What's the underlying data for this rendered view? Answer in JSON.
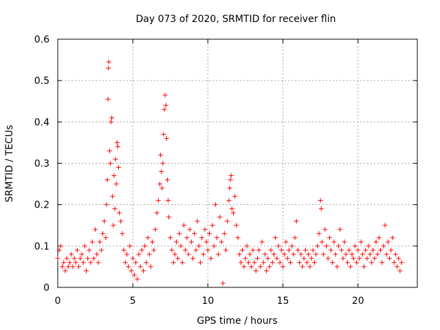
{
  "chart_data": {
    "type": "scatter",
    "title": "Day 073 of 2020, SRMTID for receiver flin",
    "xlabel": "GPS time / hours",
    "ylabel": "SRMTID / TECUs",
    "xlim": [
      0,
      23.95
    ],
    "ylim": [
      0,
      0.6
    ],
    "x_ticks": [
      0,
      5,
      10,
      15,
      20
    ],
    "y_ticks": [
      0,
      0.1,
      0.2,
      0.3,
      0.4,
      0.5,
      0.6
    ],
    "x_tick_labels": [
      "0",
      "5",
      "10",
      "15",
      "20"
    ],
    "y_tick_labels": [
      "0",
      "0.1",
      "0.2",
      "0.3",
      "0.4",
      "0.5",
      "0.6"
    ],
    "grid": true,
    "marker": "+",
    "color": "#ff0000",
    "series": [
      {
        "name": "SRMTID",
        "points": [
          [
            0.0,
            0.07
          ],
          [
            0.1,
            0.09
          ],
          [
            0.2,
            0.1
          ],
          [
            0.3,
            0.05
          ],
          [
            0.4,
            0.06
          ],
          [
            0.5,
            0.04
          ],
          [
            0.6,
            0.07
          ],
          [
            0.7,
            0.05
          ],
          [
            0.8,
            0.06
          ],
          [
            0.9,
            0.08
          ],
          [
            1.0,
            0.05
          ],
          [
            1.1,
            0.07
          ],
          [
            1.2,
            0.06
          ],
          [
            1.3,
            0.09
          ],
          [
            1.4,
            0.05
          ],
          [
            1.5,
            0.07
          ],
          [
            1.6,
            0.08
          ],
          [
            1.7,
            0.06
          ],
          [
            1.8,
            0.1
          ],
          [
            1.9,
            0.04
          ],
          [
            2.0,
            0.07
          ],
          [
            2.1,
            0.09
          ],
          [
            2.2,
            0.06
          ],
          [
            2.3,
            0.11
          ],
          [
            2.4,
            0.07
          ],
          [
            2.5,
            0.14
          ],
          [
            2.6,
            0.08
          ],
          [
            2.7,
            0.06
          ],
          [
            2.8,
            0.11
          ],
          [
            2.9,
            0.09
          ],
          [
            3.0,
            0.13
          ],
          [
            3.1,
            0.16
          ],
          [
            3.2,
            0.12
          ],
          [
            3.25,
            0.2
          ],
          [
            3.3,
            0.26
          ],
          [
            3.35,
            0.455
          ],
          [
            3.37,
            0.53
          ],
          [
            3.4,
            0.545
          ],
          [
            3.45,
            0.33
          ],
          [
            3.5,
            0.3
          ],
          [
            3.55,
            0.4
          ],
          [
            3.6,
            0.41
          ],
          [
            3.65,
            0.22
          ],
          [
            3.7,
            0.15
          ],
          [
            3.75,
            0.27
          ],
          [
            3.8,
            0.19
          ],
          [
            3.85,
            0.31
          ],
          [
            3.9,
            0.25
          ],
          [
            3.95,
            0.35
          ],
          [
            4.0,
            0.34
          ],
          [
            4.05,
            0.29
          ],
          [
            4.1,
            0.18
          ],
          [
            4.2,
            0.16
          ],
          [
            4.3,
            0.13
          ],
          [
            4.4,
            0.09
          ],
          [
            4.5,
            0.06
          ],
          [
            4.6,
            0.08
          ],
          [
            4.7,
            0.05
          ],
          [
            4.8,
            0.1
          ],
          [
            4.9,
            0.04
          ],
          [
            5.0,
            0.07
          ],
          [
            5.1,
            0.03
          ],
          [
            5.2,
            0.06
          ],
          [
            5.3,
            0.02
          ],
          [
            5.4,
            0.08
          ],
          [
            5.5,
            0.05
          ],
          [
            5.6,
            0.09
          ],
          [
            5.7,
            0.04
          ],
          [
            5.8,
            0.1
          ],
          [
            5.9,
            0.06
          ],
          [
            6.0,
            0.12
          ],
          [
            6.1,
            0.08
          ],
          [
            6.2,
            0.05
          ],
          [
            6.3,
            0.11
          ],
          [
            6.4,
            0.09
          ],
          [
            6.5,
            0.14
          ],
          [
            6.6,
            0.18
          ],
          [
            6.7,
            0.21
          ],
          [
            6.8,
            0.25
          ],
          [
            6.85,
            0.32
          ],
          [
            6.9,
            0.28
          ],
          [
            6.95,
            0.24
          ],
          [
            7.0,
            0.3
          ],
          [
            7.05,
            0.37
          ],
          [
            7.1,
            0.43
          ],
          [
            7.15,
            0.465
          ],
          [
            7.2,
            0.44
          ],
          [
            7.25,
            0.36
          ],
          [
            7.3,
            0.26
          ],
          [
            7.35,
            0.21
          ],
          [
            7.4,
            0.17
          ],
          [
            7.5,
            0.12
          ],
          [
            7.6,
            0.09
          ],
          [
            7.7,
            0.06
          ],
          [
            7.8,
            0.08
          ],
          [
            7.9,
            0.11
          ],
          [
            8.0,
            0.07
          ],
          [
            8.1,
            0.13
          ],
          [
            8.2,
            0.1
          ],
          [
            8.3,
            0.06
          ],
          [
            8.4,
            0.15
          ],
          [
            8.5,
            0.09
          ],
          [
            8.6,
            0.12
          ],
          [
            8.7,
            0.08
          ],
          [
            8.8,
            0.14
          ],
          [
            8.9,
            0.11
          ],
          [
            9.0,
            0.07
          ],
          [
            9.1,
            0.13
          ],
          [
            9.2,
            0.09
          ],
          [
            9.3,
            0.16
          ],
          [
            9.4,
            0.1
          ],
          [
            9.5,
            0.06
          ],
          [
            9.6,
            0.12
          ],
          [
            9.7,
            0.08
          ],
          [
            9.8,
            0.14
          ],
          [
            9.9,
            0.11
          ],
          [
            10.0,
            0.09
          ],
          [
            10.1,
            0.13
          ],
          [
            10.2,
            0.07
          ],
          [
            10.3,
            0.15
          ],
          [
            10.4,
            0.1
          ],
          [
            10.5,
            0.2
          ],
          [
            10.6,
            0.12
          ],
          [
            10.7,
            0.08
          ],
          [
            10.8,
            0.17
          ],
          [
            10.9,
            0.11
          ],
          [
            11.0,
            0.01
          ],
          [
            11.1,
            0.13
          ],
          [
            11.2,
            0.09
          ],
          [
            11.3,
            0.16
          ],
          [
            11.4,
            0.21
          ],
          [
            11.45,
            0.24
          ],
          [
            11.5,
            0.26
          ],
          [
            11.55,
            0.27
          ],
          [
            11.6,
            0.19
          ],
          [
            11.7,
            0.18
          ],
          [
            11.8,
            0.22
          ],
          [
            11.9,
            0.15
          ],
          [
            12.0,
            0.12
          ],
          [
            12.1,
            0.08
          ],
          [
            12.2,
            0.06
          ],
          [
            12.3,
            0.09
          ],
          [
            12.4,
            0.05
          ],
          [
            12.5,
            0.07
          ],
          [
            12.6,
            0.1
          ],
          [
            12.7,
            0.06
          ],
          [
            12.8,
            0.08
          ],
          [
            12.9,
            0.05
          ],
          [
            13.0,
            0.09
          ],
          [
            13.1,
            0.06
          ],
          [
            13.2,
            0.04
          ],
          [
            13.3,
            0.07
          ],
          [
            13.4,
            0.09
          ],
          [
            13.5,
            0.05
          ],
          [
            13.6,
            0.11
          ],
          [
            13.7,
            0.06
          ],
          [
            13.8,
            0.08
          ],
          [
            13.9,
            0.04
          ],
          [
            14.0,
            0.07
          ],
          [
            14.1,
            0.05
          ],
          [
            14.2,
            0.09
          ],
          [
            14.3,
            0.06
          ],
          [
            14.4,
            0.08
          ],
          [
            14.5,
            0.12
          ],
          [
            14.6,
            0.07
          ],
          [
            14.7,
            0.1
          ],
          [
            14.8,
            0.06
          ],
          [
            14.9,
            0.09
          ],
          [
            15.0,
            0.05
          ],
          [
            15.1,
            0.08
          ],
          [
            15.2,
            0.11
          ],
          [
            15.3,
            0.07
          ],
          [
            15.4,
            0.09
          ],
          [
            15.5,
            0.06
          ],
          [
            15.6,
            0.1
          ],
          [
            15.7,
            0.08
          ],
          [
            15.8,
            0.12
          ],
          [
            15.9,
            0.16
          ],
          [
            16.0,
            0.09
          ],
          [
            16.1,
            0.06
          ],
          [
            16.2,
            0.08
          ],
          [
            16.3,
            0.05
          ],
          [
            16.4,
            0.07
          ],
          [
            16.5,
            0.09
          ],
          [
            16.6,
            0.06
          ],
          [
            16.7,
            0.08
          ],
          [
            16.8,
            0.05
          ],
          [
            16.9,
            0.07
          ],
          [
            17.0,
            0.09
          ],
          [
            17.1,
            0.06
          ],
          [
            17.2,
            0.08
          ],
          [
            17.3,
            0.1
          ],
          [
            17.4,
            0.13
          ],
          [
            17.5,
            0.21
          ],
          [
            17.55,
            0.19
          ],
          [
            17.6,
            0.11
          ],
          [
            17.7,
            0.08
          ],
          [
            17.8,
            0.14
          ],
          [
            17.9,
            0.1
          ],
          [
            18.0,
            0.07
          ],
          [
            18.1,
            0.12
          ],
          [
            18.2,
            0.09
          ],
          [
            18.3,
            0.06
          ],
          [
            18.4,
            0.11
          ],
          [
            18.5,
            0.08
          ],
          [
            18.6,
            0.05
          ],
          [
            18.7,
            0.1
          ],
          [
            18.8,
            0.14
          ],
          [
            18.9,
            0.09
          ],
          [
            19.0,
            0.07
          ],
          [
            19.1,
            0.11
          ],
          [
            19.2,
            0.08
          ],
          [
            19.3,
            0.06
          ],
          [
            19.4,
            0.09
          ],
          [
            19.5,
            0.05
          ],
          [
            19.6,
            0.08
          ],
          [
            19.7,
            0.07
          ],
          [
            19.8,
            0.1
          ],
          [
            19.9,
            0.06
          ],
          [
            20.0,
            0.09
          ],
          [
            20.1,
            0.07
          ],
          [
            20.2,
            0.11
          ],
          [
            20.3,
            0.08
          ],
          [
            20.4,
            0.05
          ],
          [
            20.5,
            0.09
          ],
          [
            20.6,
            0.07
          ],
          [
            20.7,
            0.1
          ],
          [
            20.8,
            0.08
          ],
          [
            20.9,
            0.06
          ],
          [
            21.0,
            0.09
          ],
          [
            21.1,
            0.07
          ],
          [
            21.2,
            0.11
          ],
          [
            21.3,
            0.08
          ],
          [
            21.4,
            0.12
          ],
          [
            21.5,
            0.09
          ],
          [
            21.6,
            0.06
          ],
          [
            21.7,
            0.1
          ],
          [
            21.8,
            0.15
          ],
          [
            21.9,
            0.08
          ],
          [
            22.0,
            0.11
          ],
          [
            22.1,
            0.07
          ],
          [
            22.2,
            0.09
          ],
          [
            22.3,
            0.12
          ],
          [
            22.4,
            0.06
          ],
          [
            22.5,
            0.08
          ],
          [
            22.6,
            0.05
          ],
          [
            22.7,
            0.07
          ],
          [
            22.8,
            0.04
          ],
          [
            22.9,
            0.06
          ]
        ]
      }
    ]
  }
}
